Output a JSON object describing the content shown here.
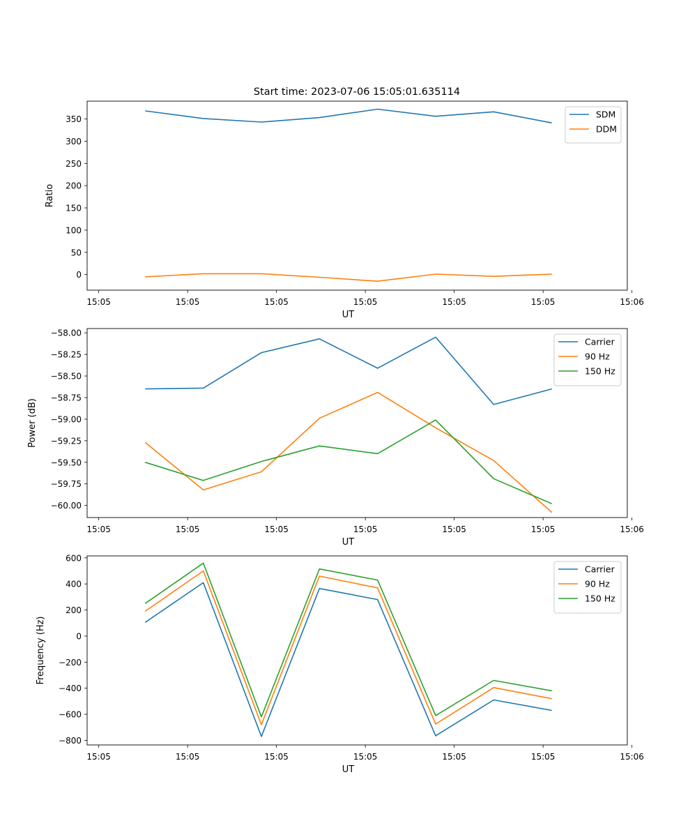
{
  "figure": {
    "title": "Start time: 2023-07-06 15:05:01.635114"
  },
  "colors": {
    "blue": "#1f77b4",
    "orange": "#ff7f0e",
    "green": "#2ca02c"
  },
  "chart_data": [
    {
      "type": "line",
      "id": "ratio",
      "title": "Start time: 2023-07-06 15:05:01.635114",
      "xlabel": "UT",
      "ylabel": "Ratio",
      "x": [
        1,
        2,
        3,
        4,
        5,
        6,
        7,
        8
      ],
      "xlim": [
        0,
        9.3
      ],
      "xticks": [
        0.2,
        1.73,
        3.26,
        4.79,
        6.32,
        7.85,
        9.38
      ],
      "xticklabels": [
        "15:05",
        "15:05",
        "15:05",
        "15:05",
        "15:05",
        "15:05",
        "15:06"
      ],
      "ylim": [
        -35,
        390
      ],
      "yticks": [
        0,
        50,
        100,
        150,
        200,
        250,
        300,
        350
      ],
      "yticklabels": [
        "0",
        "50",
        "100",
        "150",
        "200",
        "250",
        "300",
        "350"
      ],
      "legend_position": "top-right",
      "series": [
        {
          "name": "SDM",
          "color_key": "blue",
          "values": [
            368,
            351,
            343,
            353,
            372,
            356,
            366,
            341
          ]
        },
        {
          "name": "DDM",
          "color_key": "orange",
          "values": [
            -5,
            2,
            2,
            -6,
            -15,
            1,
            -4,
            1
          ]
        }
      ]
    },
    {
      "type": "line",
      "id": "power",
      "title": "",
      "xlabel": "UT",
      "ylabel": "Power (dB)",
      "x": [
        1,
        2,
        3,
        4,
        5,
        6,
        7,
        8
      ],
      "xlim": [
        0,
        9.3
      ],
      "xticks": [
        0.2,
        1.73,
        3.26,
        4.79,
        6.32,
        7.85,
        9.38
      ],
      "xticklabels": [
        "15:05",
        "15:05",
        "15:05",
        "15:05",
        "15:05",
        "15:05",
        "15:06"
      ],
      "ylim": [
        -60.14,
        -57.95
      ],
      "yticks": [
        -60.0,
        -59.75,
        -59.5,
        -59.25,
        -59.0,
        -58.75,
        -58.5,
        -58.25,
        -58.0
      ],
      "yticklabels": [
        "−60.00",
        "−59.75",
        "−59.50",
        "−59.25",
        "−59.00",
        "−58.75",
        "−58.50",
        "−58.25",
        "−58.00"
      ],
      "legend_position": "top-right",
      "series": [
        {
          "name": "Carrier",
          "color_key": "blue",
          "values": [
            -58.65,
            -58.64,
            -58.23,
            -58.07,
            -58.41,
            -58.05,
            -58.83,
            -58.65
          ]
        },
        {
          "name": "90 Hz",
          "color_key": "orange",
          "values": [
            -59.27,
            -59.82,
            -59.61,
            -58.99,
            -58.69,
            -59.1,
            -59.48,
            -60.08
          ]
        },
        {
          "name": "150 Hz",
          "color_key": "green",
          "values": [
            -59.5,
            -59.71,
            -59.49,
            -59.31,
            -59.4,
            -59.01,
            -59.69,
            -59.98
          ]
        }
      ]
    },
    {
      "type": "line",
      "id": "frequency",
      "title": "",
      "xlabel": "UT",
      "ylabel": "Frequency (Hz)",
      "x": [
        1,
        2,
        3,
        4,
        5,
        6,
        7,
        8
      ],
      "xlim": [
        0,
        9.3
      ],
      "xticks": [
        0.2,
        1.73,
        3.26,
        4.79,
        6.32,
        7.85,
        9.38
      ],
      "xticklabels": [
        "15:05",
        "15:05",
        "15:05",
        "15:05",
        "15:05",
        "15:05",
        "15:06"
      ],
      "ylim": [
        -835,
        615
      ],
      "yticks": [
        -800,
        -600,
        -400,
        -200,
        0,
        200,
        400,
        600
      ],
      "yticklabels": [
        "−800",
        "−600",
        "−400",
        "−200",
        "0",
        "200",
        "400",
        "600"
      ],
      "legend_position": "top-right",
      "series": [
        {
          "name": "Carrier",
          "color_key": "blue",
          "values": [
            105,
            410,
            -770,
            365,
            280,
            -765,
            -490,
            -570
          ]
        },
        {
          "name": "90 Hz",
          "color_key": "orange",
          "values": [
            190,
            500,
            -680,
            460,
            370,
            -675,
            -395,
            -480
          ]
        },
        {
          "name": "150 Hz",
          "color_key": "green",
          "values": [
            250,
            560,
            -620,
            515,
            430,
            -610,
            -340,
            -420
          ]
        }
      ]
    }
  ]
}
